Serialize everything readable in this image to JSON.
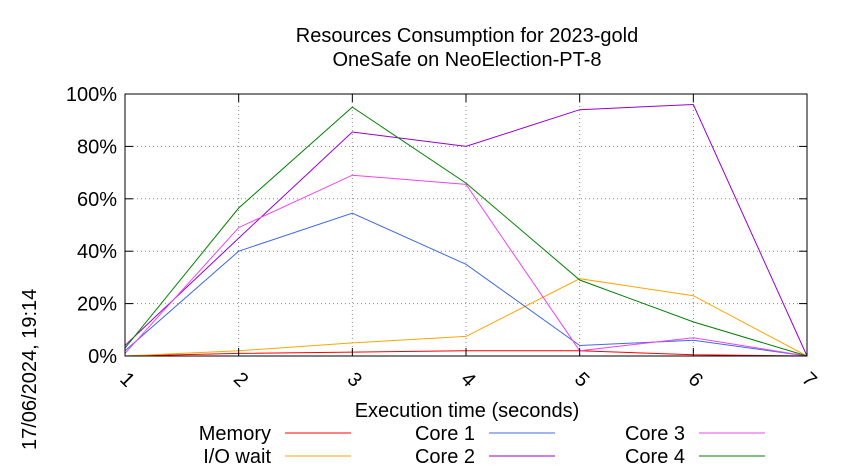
{
  "chart_data": {
    "type": "line",
    "title": [
      "Resources Consumption for 2023-gold",
      "OneSafe on NeoElection-PT-8"
    ],
    "xlabel": "Execution time (seconds)",
    "ylabel": "",
    "timestamp": "17/06/2024, 19:14",
    "x": [
      1,
      2,
      3,
      4,
      5,
      6,
      7
    ],
    "xlim": [
      1,
      7
    ],
    "ylim": [
      0,
      100
    ],
    "x_tick_labels": [
      "1",
      "2",
      "3",
      "4",
      "5",
      "6",
      "7"
    ],
    "y_tick_labels": [
      "0%",
      "20%",
      "40%",
      "60%",
      "80%",
      "100%"
    ],
    "y_ticks": [
      0,
      20,
      40,
      60,
      80,
      100
    ],
    "grid": true,
    "legend_position": "bottom",
    "series": [
      {
        "name": "Memory",
        "color": "#ff0000",
        "values": [
          0,
          1,
          1.5,
          2,
          2,
          0.5,
          0
        ]
      },
      {
        "name": "I/O wait",
        "color": "#ffa500",
        "values": [
          0,
          2,
          5,
          7.5,
          29.5,
          23,
          0
        ]
      },
      {
        "name": "Core 1",
        "color": "#4169e1",
        "values": [
          2,
          40,
          54.5,
          35,
          4,
          6,
          0
        ]
      },
      {
        "name": "Core 2",
        "color": "#9400d3",
        "values": [
          4,
          45,
          85.5,
          80,
          94,
          96,
          0
        ]
      },
      {
        "name": "Core 3",
        "color": "#ee44ee",
        "values": [
          1,
          49,
          69,
          65.5,
          2,
          7,
          0
        ]
      },
      {
        "name": "Core 4",
        "color": "#008000",
        "values": [
          3,
          56.5,
          95,
          66,
          29,
          13,
          0
        ]
      }
    ]
  }
}
